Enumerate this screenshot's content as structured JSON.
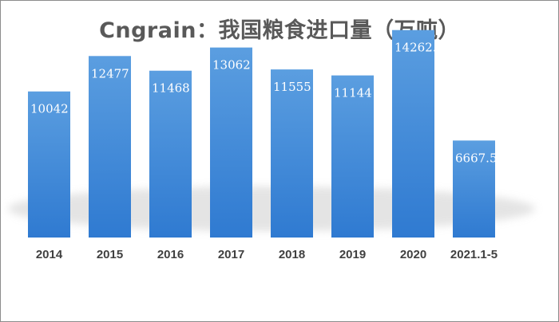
{
  "chart_data": {
    "type": "bar",
    "title": "Cngrain：我国粮食进口量（万吨）",
    "categories": [
      "2014",
      "2015",
      "2016",
      "2017",
      "2018",
      "2019",
      "2020",
      "2021.1-5"
    ],
    "values": [
      10042,
      12477,
      11468,
      13062,
      11555,
      11144,
      14262.1,
      6667.5
    ],
    "data_labels": [
      "10042",
      "12477",
      "11468",
      "13062",
      "11555",
      "11144",
      "14262.1",
      "6667.5"
    ],
    "xlabel": "",
    "ylabel": "",
    "ylim": [
      0,
      16000
    ],
    "grid": false,
    "legend": "none",
    "colors": {
      "bar_top": "#5b9ee0",
      "bar_bottom": "#2f7ad1",
      "label": "#ffffff"
    }
  }
}
